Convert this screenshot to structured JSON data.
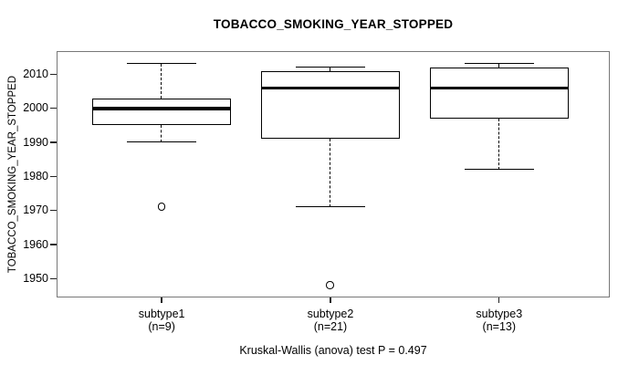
{
  "title": "TOBACCO_SMOKING_YEAR_STOPPED",
  "y_axis_label": "TOBACCO_SMOKING_YEAR_STOPPED",
  "caption": "Kruskal-Wallis (anova) test P = 0.497",
  "colors": {
    "line": "#000000",
    "frame": "#777777",
    "background": "#ffffff"
  },
  "chart_data": {
    "type": "boxplot",
    "title": "TOBACCO_SMOKING_YEAR_STOPPED",
    "xlabel": "",
    "ylabel": "TOBACCO_SMOKING_YEAR_STOPPED",
    "ylim": [
      1944.5,
      2016.8
    ],
    "y_ticks": [
      1950,
      1960,
      1970,
      1980,
      1990,
      2000,
      2010
    ],
    "grid": false,
    "categories": [
      "subtype1",
      "subtype2",
      "subtype3"
    ],
    "category_sublabels": [
      "(n=9)",
      "(n=21)",
      "(n=13)"
    ],
    "series": [
      {
        "name": "subtype1",
        "n": 9,
        "whisker_low": 1990,
        "q1": 1995,
        "median": 2000,
        "q3": 2003,
        "whisker_high": 2013,
        "outliers": [
          1971
        ],
        "center_frac": 0.19
      },
      {
        "name": "subtype2",
        "n": 21,
        "whisker_low": 1971,
        "q1": 1991,
        "median": 2006,
        "q3": 2011,
        "whisker_high": 2012,
        "outliers": [
          1948
        ],
        "center_frac": 0.495
      },
      {
        "name": "subtype3",
        "n": 13,
        "whisker_low": 1982,
        "q1": 1997,
        "median": 2006,
        "q3": 2012,
        "whisker_high": 2013,
        "outliers": [],
        "center_frac": 0.8
      }
    ],
    "stat_test": "Kruskal-Wallis (anova)",
    "p_value": 0.497
  }
}
